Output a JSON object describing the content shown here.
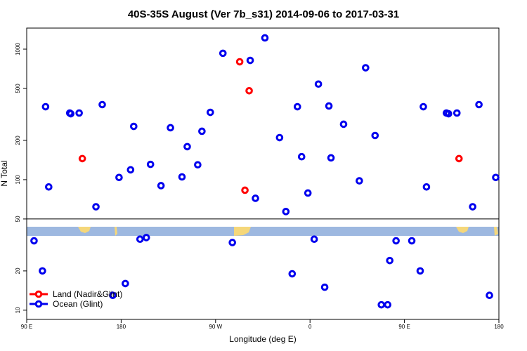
{
  "chart_data": {
    "type": "scatter",
    "title": "40S-35S August (Ver 7b_s31)   2014-09-06 to 2017-03-31",
    "x_label": "Longitude (deg E)",
    "y_label": "N Total",
    "xlim": [
      90,
      540
    ],
    "ylim": [
      8.5,
      1450
    ],
    "y_log": true,
    "xticks": [
      {
        "value": 90,
        "label": "90 E"
      },
      180,
      {
        "value": 270,
        "label": "90 W"
      },
      {
        "value": 360,
        "label": "0"
      },
      {
        "value": 450,
        "label": "90 E"
      },
      {
        "value": 540,
        "label": "180"
      }
    ],
    "yticks": [
      10,
      20,
      50,
      100,
      200,
      500,
      1000
    ],
    "legend": "bottomleft",
    "series": [
      {
        "name": "Land (Nadir&Glint)",
        "color": "#ff0000",
        "x": [
          143,
          293,
          302,
          298,
          502
        ],
        "values": [
          145,
          800,
          480,
          83,
          145
        ]
      },
      {
        "name": "Ocean (Glint)",
        "color": "#0000ee",
        "x": [
          97,
          105,
          108,
          111,
          131,
          132,
          140,
          156,
          162,
          172,
          178,
          184,
          189,
          192,
          198,
          204,
          208,
          218,
          227,
          238,
          243,
          253,
          257,
          265,
          277,
          286,
          303,
          308,
          317,
          331,
          337,
          343,
          348,
          352,
          358,
          364,
          368,
          374,
          378,
          380,
          392,
          407,
          413,
          422,
          428,
          434,
          436,
          442,
          457,
          465,
          468,
          471,
          490,
          492,
          500,
          515,
          521,
          531,
          537
        ],
        "values": [
          34,
          20,
          362,
          88,
          324,
          320,
          324,
          62,
          376,
          13,
          104,
          16,
          119,
          256,
          35,
          36,
          131,
          90,
          250,
          105,
          179,
          130,
          235,
          328,
          930,
          33,
          820,
          72,
          1220,
          210,
          57,
          19,
          362,
          150,
          79,
          35,
          540,
          15,
          367,
          147,
          266,
          98,
          720,
          218,
          11,
          11,
          24,
          34,
          34,
          20,
          362,
          88,
          324,
          320,
          324,
          62,
          376,
          13,
          104
        ]
      }
    ]
  }
}
